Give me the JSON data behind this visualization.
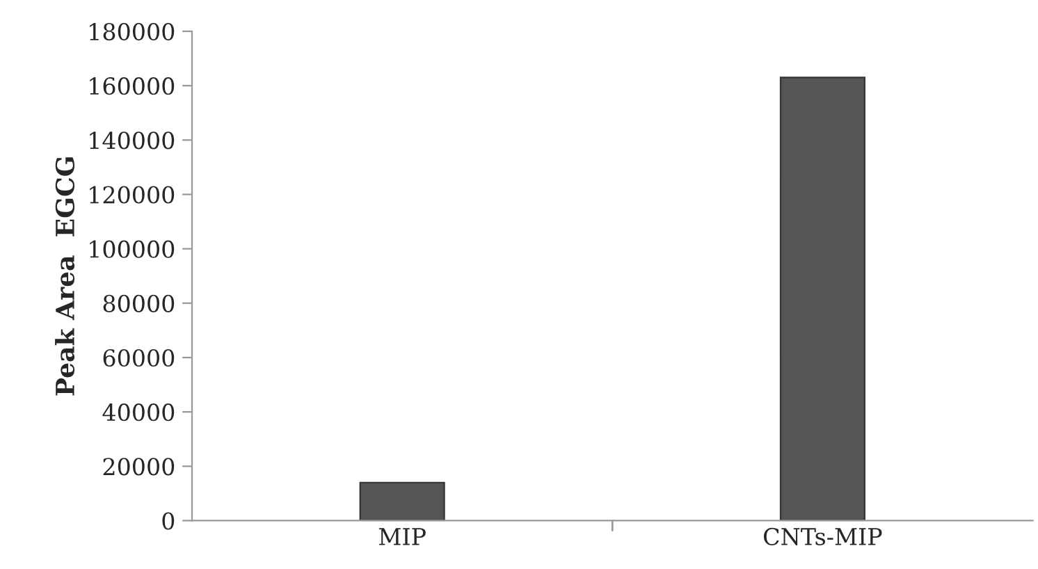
{
  "chart_data": {
    "type": "bar",
    "ylabel": "Peak Area  EGCG",
    "categories": [
      "MIP",
      "CNTs-MIP"
    ],
    "values": [
      14000,
      163000
    ],
    "color": "#555555",
    "ylim": [
      0,
      180000
    ],
    "yticks": [
      0,
      20000,
      40000,
      60000,
      80000,
      100000,
      120000,
      140000,
      160000,
      180000
    ],
    "grid": false
  }
}
